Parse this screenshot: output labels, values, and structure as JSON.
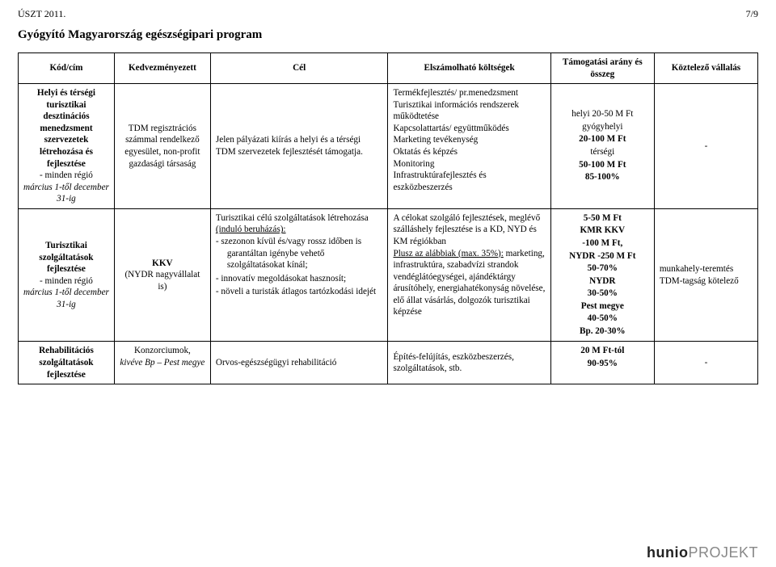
{
  "doc_label": "ÚSZT 2011.",
  "page_num": "7/9",
  "section_title": "Gyógyító Magyarország egészségipari program",
  "table": {
    "headers": [
      "Kód/cím",
      "Kedvezményezett",
      "Cél",
      "Elszámolható költségek",
      "Támogatási arány és összeg",
      "Köztelező vállalás"
    ]
  },
  "rows": [
    {
      "code_title": "Helyi és térségi turisztikai desztinációs menedzsment szervezetek létrehozása és fejlesztése",
      "code_extra1": "- minden régió",
      "code_extra2": "március 1-től december 31-ig",
      "beneficiary": "TDM regisztrációs számmal rendelkező egyesület, non-profit gazdasági társaság",
      "goal": "Jelen pályázati kiírás a helyi és a térségi TDM szervezetek fejlesztését támogatja.",
      "costs_items": [
        "Termékfejlesztés/ pr.menedzsment",
        "Turisztikai információs rendszerek működtetése",
        "Kapcsolattartás/ együttműködés",
        "Marketing tevékenység",
        "Oktatás és képzés",
        "Monitoring",
        "Infrastruktúrafejlesztés és eszközbeszerzés"
      ],
      "support_lines": [
        "helyi 20-50 M Ft",
        "gyógyhelyi",
        "20-100 M Ft",
        "térségi",
        "50-100 M Ft",
        "",
        "85-100%"
      ],
      "obligation": "-"
    },
    {
      "code_title": "Turisztikai szolgáltatások fejlesztése",
      "code_extra1": "- minden régió",
      "code_extra2": "március 1-től december 31-ig",
      "beneficiary_main": "KKV",
      "beneficiary_sub": "(NYDR nagyvállalat is)",
      "goal_intro": "Turisztikai célú szolgáltatások létrehozása ",
      "goal_under": "(induló beruházás):",
      "goal_bullets": [
        "szezonon kívül és/vagy rossz időben is garantáltan igénybe vehető szolgáltatásokat kínál;",
        "innovatív megoldásokat hasznosít;",
        "növeli a turisták átlagos tartózkodási idejét"
      ],
      "costs_line1": "A célokat szolgáló fejlesztések, meglévő szálláshely fejlesztése is a KD, NYD és KM régiókban",
      "costs_line2_lead": "Plusz az alábbiak (max. 35%):",
      "costs_line2_rest": " marketing, infrastruktúra, szabadvízi strandok vendéglátóegységei, ajándéktárgy árusítóhely, energiahatékonyság növelése, elő állat vásárlás, dolgozók turisztikai képzése",
      "support_lines": [
        "5-50 M Ft",
        "KMR KKV",
        "-100 M Ft,",
        "NYDR -250 M Ft",
        "50-70%",
        "NYDR",
        "30-50%",
        "Pest megye",
        "40-50%",
        "Bp. 20-30%"
      ],
      "obligation": "munkahely-teremtés TDM-tagság kötelező"
    },
    {
      "code_title": "Rehabilitációs szolgáltatások fejlesztése",
      "beneficiary_main": "Konzorciumok,",
      "beneficiary_sub": "kivéve Bp – Pest megye",
      "goal": "Orvos-egészségügyi rehabilitáció",
      "costs": "Építés-felújítás, eszközbeszerzés, szolgáltatások, stb.",
      "support_lines": [
        "20 M Ft-tól",
        "90-95%"
      ],
      "obligation": "-"
    }
  ],
  "footer": {
    "hunio": "hunio",
    "projekt": "PROJEKT"
  }
}
